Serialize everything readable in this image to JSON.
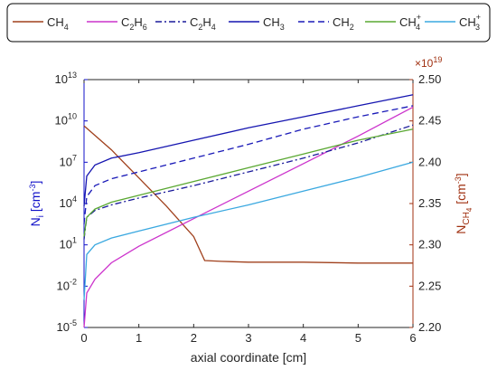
{
  "colors": {
    "left_axis": "#1010c8",
    "right_axis": "#a03010",
    "legend_border": "#000000"
  },
  "legend": [
    {
      "label": "CH",
      "sub": "4",
      "sup": "",
      "color": "#a0401c",
      "dash": "solid"
    },
    {
      "label": "C",
      "sub": "2",
      "mid": "H",
      "sub2": "6",
      "sup": "",
      "color": "#cc33cc",
      "dash": "solid"
    },
    {
      "label": "C",
      "sub": "2",
      "mid": "H",
      "sub2": "4",
      "sup": "",
      "color": "#1a1a9a",
      "dash": "dashdot"
    },
    {
      "label": "CH",
      "sub": "3",
      "sup": "",
      "color": "#1515b0",
      "dash": "solid"
    },
    {
      "label": "CH",
      "sub": "2",
      "sup": "",
      "color": "#1a1ab8",
      "dash": "dashed"
    },
    {
      "label": "CH",
      "sub": "4",
      "sup": "+",
      "color": "#5aa832",
      "dash": "solid"
    },
    {
      "label": "CH",
      "sub": "3",
      "sup": "+",
      "color": "#3aa8e0",
      "dash": "solid"
    }
  ],
  "axes": {
    "left_label": "N",
    "left_label_sub": "i",
    "left_label_unit": "[cm",
    "left_label_unit_sup": "-3",
    "left_label_close": "]",
    "right_label": "N",
    "right_label_sub": "CH",
    "right_label_sub2": "4",
    "right_label_unit": "[cm",
    "right_label_unit_sup": "-3",
    "right_label_close": "]",
    "right_multiplier": "×10",
    "right_multiplier_exp": "19",
    "x_label": "axial coordinate [cm]"
  },
  "chart_data": {
    "type": "line",
    "xlabel": "axial coordinate [cm]",
    "ylabel": "N_i [cm^-3]",
    "ylabel_right": "N_CH4 [cm^-3]",
    "xlim": [
      0,
      6
    ],
    "xticks": [
      "0",
      "1",
      "2",
      "3",
      "4",
      "5",
      "6"
    ],
    "ylim_log10": [
      -5,
      13
    ],
    "yscale": "log",
    "yticks": [
      {
        "base": "10",
        "exp": "13",
        "log": 13
      },
      {
        "base": "10",
        "exp": "10",
        "log": 10
      },
      {
        "base": "10",
        "exp": "7",
        "log": 7
      },
      {
        "base": "10",
        "exp": "4",
        "log": 4
      },
      {
        "base": "10",
        "exp": "1",
        "log": 1
      },
      {
        "base": "10",
        "exp": "-2",
        "log": -2
      },
      {
        "base": "10",
        "exp": "-5",
        "log": -5
      }
    ],
    "ylim_right": [
      2.2,
      2.5
    ],
    "yticks_right": [
      "2.20",
      "2.25",
      "2.30",
      "2.35",
      "2.40",
      "2.45",
      "2.50"
    ],
    "grid": false,
    "legend_position": "top",
    "series": [
      {
        "name": "CH4",
        "axis": "right",
        "x": [
          0,
          0.5,
          1,
          1.5,
          2,
          2.2,
          2.5,
          3,
          4,
          5,
          6
        ],
        "y": [
          2.444,
          2.415,
          2.381,
          2.347,
          2.31,
          2.281,
          2.28,
          2.279,
          2.279,
          2.278,
          2.278
        ]
      },
      {
        "name": "C2H6",
        "axis": "left",
        "x": [
          0,
          0.05,
          0.2,
          0.5,
          1,
          2,
          3,
          4,
          5,
          6
        ],
        "y_log10": [
          -5,
          -2.5,
          -1.5,
          -0.3,
          0.9,
          2.9,
          4.9,
          6.9,
          8.9,
          11
        ]
      },
      {
        "name": "C2H4",
        "axis": "left",
        "x": [
          0,
          0.05,
          0.2,
          0.5,
          1,
          2,
          3,
          4,
          5,
          6
        ],
        "y_log10": [
          1.4,
          3.0,
          3.5,
          3.9,
          4.4,
          5.3,
          6.3,
          7.3,
          8.4,
          9.7
        ]
      },
      {
        "name": "CH3",
        "axis": "left",
        "x": [
          0,
          0.05,
          0.2,
          0.5,
          1,
          2,
          3,
          4,
          5,
          6
        ],
        "y_log10": [
          3.8,
          6.0,
          6.8,
          7.3,
          7.7,
          8.6,
          9.5,
          10.3,
          11.1,
          11.9
        ]
      },
      {
        "name": "CH2",
        "axis": "left",
        "x": [
          0,
          0.05,
          0.2,
          0.5,
          1,
          2,
          3,
          4,
          5,
          6
        ],
        "y_log10": [
          2.5,
          4.5,
          5.3,
          5.8,
          6.3,
          7.3,
          8.3,
          9.4,
          10.3,
          11.1
        ]
      },
      {
        "name": "CH4+",
        "axis": "left",
        "x": [
          0,
          0.05,
          0.2,
          0.5,
          1,
          2,
          3,
          4,
          5,
          6
        ],
        "y_log10": [
          1.6,
          3.0,
          3.6,
          4.1,
          4.6,
          5.6,
          6.6,
          7.6,
          8.6,
          9.4
        ]
      },
      {
        "name": "CH3+",
        "axis": "left",
        "x": [
          0,
          0.05,
          0.2,
          0.5,
          1,
          2,
          3,
          4,
          5,
          6
        ],
        "y_log10": [
          -3,
          0.3,
          1.0,
          1.5,
          2.0,
          3.0,
          3.9,
          4.9,
          5.9,
          7.0
        ]
      }
    ]
  }
}
